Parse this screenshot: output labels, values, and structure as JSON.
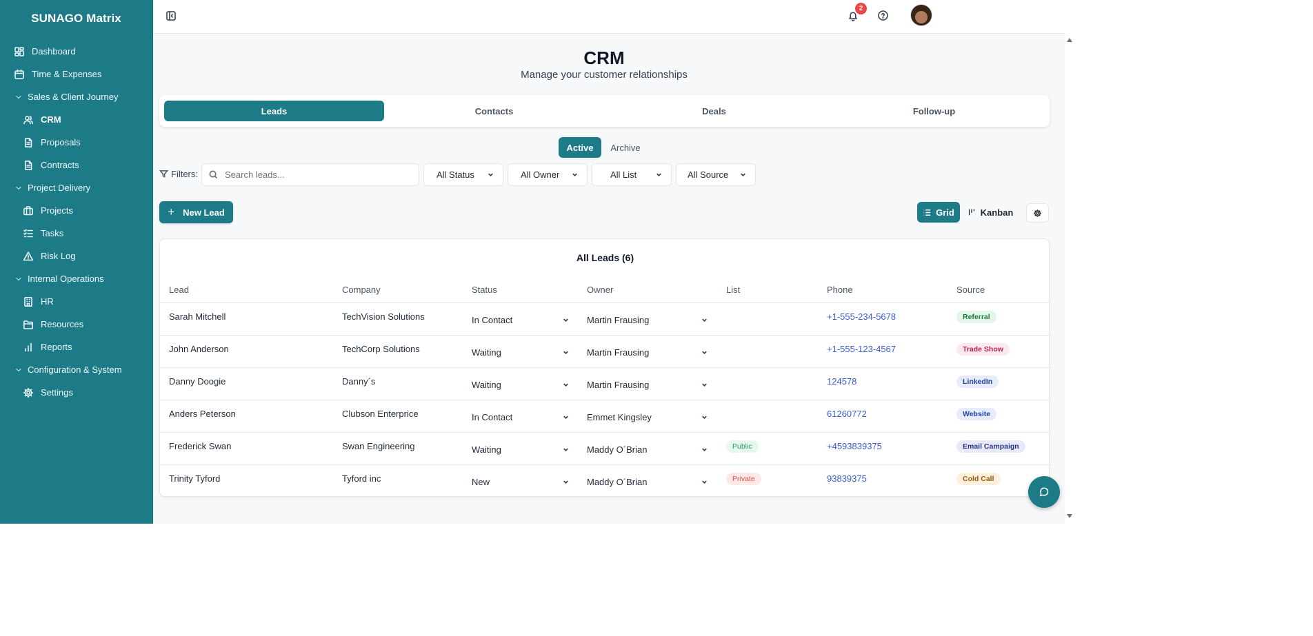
{
  "app": {
    "brand": "SUNAGO Matrix"
  },
  "sidebar": {
    "items": [
      {
        "label": "Dashboard",
        "icon": "dashboard-icon",
        "kind": "top"
      },
      {
        "label": "Time & Expenses",
        "icon": "calendar-icon",
        "kind": "top"
      },
      {
        "label": "Sales & Client Journey",
        "icon": "chevron-down-icon",
        "kind": "group"
      },
      {
        "label": "CRM",
        "icon": "users-icon",
        "kind": "sub",
        "active": true
      },
      {
        "label": "Proposals",
        "icon": "file-icon",
        "kind": "sub"
      },
      {
        "label": "Contracts",
        "icon": "file-icon",
        "kind": "sub"
      },
      {
        "label": "Project Delivery",
        "icon": "chevron-down-icon",
        "kind": "group"
      },
      {
        "label": "Projects",
        "icon": "briefcase-icon",
        "kind": "sub"
      },
      {
        "label": "Tasks",
        "icon": "checklist-icon",
        "kind": "sub"
      },
      {
        "label": "Risk Log",
        "icon": "warning-icon",
        "kind": "sub"
      },
      {
        "label": "Internal Operations",
        "icon": "chevron-down-icon",
        "kind": "group"
      },
      {
        "label": "HR",
        "icon": "building-icon",
        "kind": "sub"
      },
      {
        "label": "Resources",
        "icon": "folder-icon",
        "kind": "sub"
      },
      {
        "label": "Reports",
        "icon": "bar-chart-icon",
        "kind": "sub"
      },
      {
        "label": "Configuration & System",
        "icon": "chevron-down-icon",
        "kind": "group"
      },
      {
        "label": "Settings",
        "icon": "gear-icon",
        "kind": "sub"
      }
    ]
  },
  "topbar": {
    "notification_count": "2"
  },
  "page": {
    "title": "CRM",
    "subtitle": "Manage your customer relationships"
  },
  "tabs": [
    "Leads",
    "Contacts",
    "Deals",
    "Follow-up"
  ],
  "status_toggle": {
    "active": "Active",
    "archive": "Archive"
  },
  "filters": {
    "label": "Filters:",
    "search_placeholder": "Search leads...",
    "status": "All Status",
    "owner": "All Owner",
    "list": "All List",
    "source": "All Source"
  },
  "actions": {
    "new_lead": "New Lead",
    "grid": "Grid",
    "kanban": "Kanban"
  },
  "table": {
    "title": "All Leads (6)",
    "columns": [
      "Lead",
      "Company",
      "Status",
      "Owner",
      "List",
      "Phone",
      "Source"
    ],
    "rows": [
      {
        "lead": "Sarah Mitchell",
        "company": "TechVision Solutions",
        "status": "In Contact",
        "owner": "Martin Frausing",
        "list": "",
        "phone": "+1-555-234-5678",
        "source": "Referral"
      },
      {
        "lead": "John Anderson",
        "company": "TechCorp Solutions",
        "status": "Waiting",
        "owner": "Martin Frausing",
        "list": "",
        "phone": "+1-555-123-4567",
        "source": "Trade Show"
      },
      {
        "lead": "Danny Doogie",
        "company": "Danny´s",
        "status": "Waiting",
        "owner": "Martin Frausing",
        "list": "",
        "phone": "124578",
        "source": "LinkedIn"
      },
      {
        "lead": "Anders Peterson",
        "company": "Clubson Enterprice",
        "status": "In Contact",
        "owner": "Emmet Kingsley",
        "list": "",
        "phone": "61260772",
        "source": "Website"
      },
      {
        "lead": "Frederick Swan",
        "company": "Swan Engineering",
        "status": "Waiting",
        "owner": "Maddy O´Brian",
        "list": "Public",
        "phone": "+4593839375",
        "source": "Email Campaign"
      },
      {
        "lead": "Trinity Tyford",
        "company": "Tyford inc",
        "status": "New",
        "owner": "Maddy O´Brian",
        "list": "Private",
        "phone": "93839375",
        "source": "Cold Call"
      }
    ]
  },
  "colors": {
    "primary": "#1d7a87",
    "list_public_bg": "#e6f7ee",
    "list_public_fg": "#2e9e62",
    "list_private_bg": "#fde8e8",
    "list_private_fg": "#d9534f",
    "source_referral_bg": "#e3f6e9",
    "source_referral_fg": "#1f7a3d",
    "source_tradeshow_bg": "#fde8ee",
    "source_tradeshow_fg": "#b4234c",
    "source_linkedin_bg": "#e6ecfb",
    "source_linkedin_fg": "#1f3f9c",
    "source_website_bg": "#e6ecfb",
    "source_website_fg": "#1f3f9c",
    "source_email_bg": "#e8eafa",
    "source_email_fg": "#2a3380",
    "source_coldcall_bg": "#fdf0dc",
    "source_coldcall_fg": "#9a5a10"
  }
}
